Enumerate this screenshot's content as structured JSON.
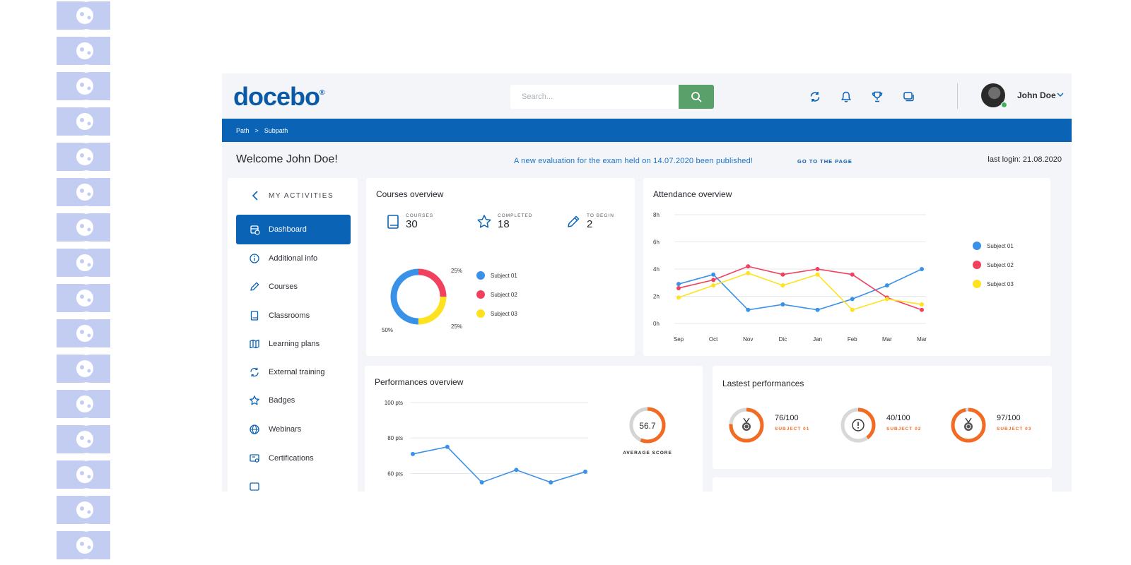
{
  "brand": {
    "logo": "docebo"
  },
  "search": {
    "placeholder": "Search..."
  },
  "user": {
    "name": "John Doe"
  },
  "breadcrumb": {
    "items": [
      "Path",
      "Subpath"
    ],
    "separator": ">"
  },
  "welcome": "Welcome John Doe!",
  "notice": {
    "text": "A new evaluation for the exam held on 14.07.2020 been published!",
    "link": "GO TO THE PAGE"
  },
  "last_login": "last login: 21.08.2020",
  "sidebar": {
    "title": "MY ACTIVITIES",
    "items": [
      {
        "label": "Dashboard",
        "icon": "dashboard-icon",
        "active": true
      },
      {
        "label": "Additional info",
        "icon": "info-icon"
      },
      {
        "label": "Courses",
        "icon": "pencil-icon"
      },
      {
        "label": "Classrooms",
        "icon": "book-icon"
      },
      {
        "label": "Learning plans",
        "icon": "map-icon"
      },
      {
        "label": "External training",
        "icon": "sync-icon"
      },
      {
        "label": "Badges",
        "icon": "star-icon"
      },
      {
        "label": "Webinars",
        "icon": "globe-icon"
      },
      {
        "label": "Certifications",
        "icon": "certificate-icon"
      }
    ]
  },
  "courses_overview": {
    "title": "Courses overview",
    "stats": [
      {
        "label": "COURSES",
        "value": "30",
        "icon": "book-icon"
      },
      {
        "label": "COMPLETED",
        "value": "18",
        "icon": "star-icon"
      },
      {
        "label": "TO BEGIN",
        "value": "2",
        "icon": "pencil-icon"
      }
    ]
  },
  "attendance_overview": {
    "title": "Attendance overview"
  },
  "performances_overview": {
    "title": "Performances overview",
    "average_score": "56.7",
    "average_label": "AVERAGE SCORE"
  },
  "latest_performances": {
    "title": "Lastest performances",
    "items": [
      {
        "score": "76/100",
        "subject": "SUBJECT 01",
        "icon": "medal-icon",
        "fraction": 0.76
      },
      {
        "score": "40/100",
        "subject": "SUBJECT 02",
        "icon": "alert-icon",
        "fraction": 0.4
      },
      {
        "score": "97/100",
        "subject": "SUBJECT 03",
        "icon": "medal-icon",
        "fraction": 0.97
      }
    ]
  },
  "colors": {
    "primary": "#0b63b5",
    "search_button": "#5aa06a",
    "subject01": "#3a91e8",
    "subject02": "#f2405f",
    "subject03": "#ffe21f",
    "orange": "#f36b22"
  },
  "chart_data": [
    {
      "type": "pie",
      "categories": [
        "Subject 01",
        "Subject 02",
        "Subject 03"
      ],
      "values": [
        50,
        25,
        25
      ],
      "labels": [
        "50%",
        "25%",
        "25%"
      ],
      "legend": [
        "Subject 01",
        "Subject 02",
        "Subject 03"
      ]
    },
    {
      "type": "line",
      "x": [
        "Sep",
        "Oct",
        "Nov",
        "Dic",
        "Jan",
        "Feb",
        "Mar",
        "Mar"
      ],
      "y_ticks": [
        "0h",
        "2h",
        "4h",
        "6h",
        "8h"
      ],
      "ylim": [
        0,
        8
      ],
      "series": [
        {
          "name": "Subject 01",
          "color": "#3a91e8",
          "values": [
            2.9,
            3.6,
            1.0,
            1.4,
            1.0,
            1.8,
            2.8,
            4.0
          ]
        },
        {
          "name": "Subject 02",
          "color": "#f2405f",
          "values": [
            2.6,
            3.2,
            4.2,
            3.6,
            4.0,
            3.6,
            1.9,
            1.0
          ]
        },
        {
          "name": "Subject 03",
          "color": "#ffe21f",
          "values": [
            1.9,
            2.8,
            3.7,
            2.8,
            3.6,
            1.0,
            1.8,
            1.4
          ]
        }
      ],
      "legend_position": "right"
    },
    {
      "type": "line",
      "y_ticks": [
        "60 pts",
        "80 pts",
        "100 pts"
      ],
      "ylim": [
        55,
        100
      ],
      "series": [
        {
          "values": [
            71,
            75,
            55,
            62,
            55,
            61
          ]
        }
      ]
    }
  ]
}
